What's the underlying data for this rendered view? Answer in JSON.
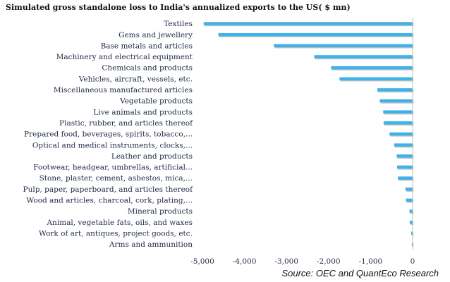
{
  "chart_data": {
    "type": "bar",
    "orientation": "horizontal",
    "title": "Simulated gross standalone loss to India's annualized exports to the US( $ mn)",
    "source": "Source: OEC and QuantEco Research",
    "xlabel": "",
    "ylabel": "",
    "categories": [
      "Textiles",
      "Gems and jewellery",
      "Base metals and articles",
      "Machinery and electrical equipment",
      "Chemicals and products",
      "Vehicles, aircraft, vessels, etc.",
      "Miscellaneous manufactured articles",
      "Vegetable products",
      "Live animals and products",
      "Plastic, rubber, and articles thereof",
      "Prepared food, beverages, spirits, tobacco,...",
      "Optical and medical instruments, clocks,...",
      "Leather and products",
      "Footwear, headgear, umbrellas, artificial...",
      "Stone, plaster, cement, asbestos, mica,...",
      "Pulp, paper, paperboard, and articles thereof",
      "Wood and articles, charcoal, cork, plating,...",
      "Mineral products",
      "Animal, vegetable fats, oils, and waxes",
      "Work of art, antiques, project goods, etc.",
      "Arms and ammunition"
    ],
    "values": [
      -4970,
      -4620,
      -3300,
      -2340,
      -1940,
      -1740,
      -840,
      -780,
      -700,
      -690,
      -550,
      -440,
      -380,
      -370,
      -350,
      -170,
      -160,
      -75,
      -70,
      -35,
      -20
    ],
    "xlim": [
      -5000,
      0
    ],
    "xticks": [
      -5000,
      -4000,
      -3000,
      -2000,
      -1000,
      0
    ],
    "xtick_labels": [
      "-5,000",
      "-4,000",
      "-3,000",
      "-2,000",
      "-1,000",
      "0"
    ],
    "grid": false,
    "legend": "none",
    "bar_color": "#3fb3e8",
    "bar_shadow_color": "#bfbfbf",
    "axis_color": "#bfbfbf"
  }
}
